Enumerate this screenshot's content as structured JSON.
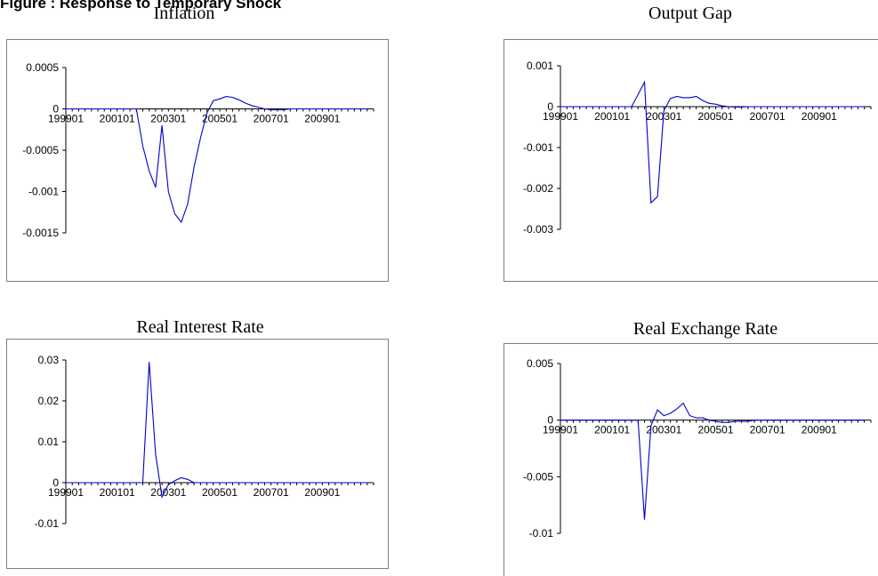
{
  "page": {
    "caption": "Figure : Response to Temporary Shock"
  },
  "chart_data": [
    {
      "type": "line",
      "title": "Inflation",
      "color": "#0000cc",
      "x_labels": [
        "199901",
        "200101",
        "200301",
        "200501",
        "200701",
        "200901"
      ],
      "y_ticks": [
        {
          "value": 0.0005,
          "label": "0.0005"
        },
        {
          "value": 0,
          "label": "0"
        },
        {
          "value": -0.0005,
          "label": "-0.0005"
        },
        {
          "value": -0.001,
          "label": "-0.001"
        },
        {
          "value": -0.0015,
          "label": "-0.0015"
        }
      ],
      "ylim": [
        -0.0015,
        0.0005
      ],
      "periods": 48,
      "values": [
        0,
        0,
        0,
        0,
        0,
        0,
        0,
        0,
        0,
        0,
        0,
        0,
        -0.00045,
        -0.00075,
        -0.00095,
        -0.0002,
        -0.001,
        -0.00127,
        -0.00137,
        -0.00115,
        -0.0007,
        -0.00035,
        -5e-05,
        0.0001,
        0.00012,
        0.00015,
        0.00014,
        0.00011,
        7e-05,
        4e-05,
        2e-05,
        0,
        -1e-05,
        -1e-05,
        -1e-05,
        0,
        0,
        0,
        0,
        0,
        0,
        0,
        0,
        0,
        0,
        0,
        0,
        0
      ]
    },
    {
      "type": "line",
      "title": "Output Gap",
      "color": "#0000cc",
      "x_labels": [
        "199901",
        "200101",
        "200301",
        "200501",
        "200701",
        "200901"
      ],
      "y_ticks": [
        {
          "value": 0.001,
          "label": "0.001"
        },
        {
          "value": 0,
          "label": "0"
        },
        {
          "value": -0.001,
          "label": "-0.001"
        },
        {
          "value": -0.002,
          "label": "-0.002"
        },
        {
          "value": -0.003,
          "label": "-0.003"
        }
      ],
      "ylim": [
        -0.003,
        0.001
      ],
      "periods": 48,
      "values": [
        0,
        0,
        0,
        0,
        0,
        0,
        0,
        0,
        0,
        0,
        0,
        0,
        0.0003,
        0.0006,
        -0.00235,
        -0.0022,
        -0.0001,
        0.0002,
        0.00025,
        0.00022,
        0.00022,
        0.00025,
        0.00015,
        8e-05,
        6e-05,
        2e-05,
        0,
        -1e-05,
        -1e-05,
        0,
        0,
        0,
        0,
        0,
        0,
        0,
        0,
        0,
        0,
        0,
        0,
        0,
        0,
        0,
        0,
        0,
        0,
        0
      ]
    },
    {
      "type": "line",
      "title": "Real Interest Rate",
      "color": "#0000cc",
      "x_labels": [
        "199901",
        "200101",
        "200301",
        "200501",
        "200701",
        "200901"
      ],
      "y_ticks": [
        {
          "value": 0.03,
          "label": "0.03"
        },
        {
          "value": 0.02,
          "label": "0.02"
        },
        {
          "value": 0.01,
          "label": "0.01"
        },
        {
          "value": 0,
          "label": "0"
        },
        {
          "value": -0.01,
          "label": "-0.01"
        }
      ],
      "ylim": [
        -0.01,
        0.03
      ],
      "periods": 48,
      "values": [
        0,
        0,
        0,
        0,
        0,
        0,
        0,
        0,
        0,
        0,
        0,
        0,
        0,
        0.0295,
        0.007,
        -0.0035,
        -0.0005,
        0.0005,
        0.0012,
        0.0008,
        0,
        0,
        0,
        0,
        0,
        0,
        0,
        0,
        0,
        0,
        0,
        0,
        0,
        0,
        0,
        0,
        0,
        0,
        0,
        0,
        0,
        0,
        0,
        0,
        0,
        0,
        0,
        0
      ]
    },
    {
      "type": "line",
      "title": "Real Exchange Rate",
      "color": "#0000cc",
      "x_labels": [
        "199901",
        "200101",
        "200301",
        "200501",
        "200701",
        "200901"
      ],
      "y_ticks": [
        {
          "value": 0.005,
          "label": "0.005"
        },
        {
          "value": 0,
          "label": "0"
        },
        {
          "value": -0.005,
          "label": "-0.005"
        },
        {
          "value": -0.01,
          "label": "-0.01"
        }
      ],
      "ylim": [
        -0.01,
        0.005
      ],
      "periods": 48,
      "values": [
        0,
        0,
        0,
        0,
        0,
        0,
        0,
        0,
        0,
        0,
        0,
        0,
        0,
        -0.0088,
        -0.0005,
        0.0009,
        0.0004,
        0.0006,
        0.001,
        0.0015,
        0.0004,
        0.0002,
        0.0002,
        0,
        -0.0001,
        -0.0002,
        -0.0002,
        -0.0001,
        -0.0001,
        -0.0001,
        0,
        0,
        0,
        0,
        0,
        0,
        0,
        0,
        0,
        0,
        0,
        0,
        0,
        0,
        0,
        0,
        0,
        0
      ]
    }
  ]
}
